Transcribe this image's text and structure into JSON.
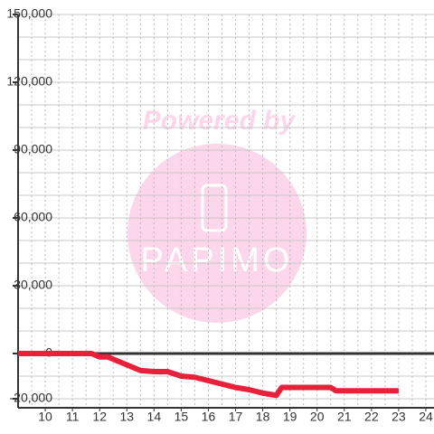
{
  "chart_data": {
    "type": "line",
    "x": [
      9,
      11.7,
      12,
      12.3,
      13,
      13.5,
      14,
      14.5,
      15,
      15.5,
      16,
      16.5,
      17,
      17.5,
      18,
      18.5,
      18.7,
      19,
      20,
      20.5,
      20.7,
      21,
      23
    ],
    "series": [
      {
        "color": "#e8203a",
        "values": [
          0,
          0,
          -1500,
          -1500,
          -5000,
          -7500,
          -8000,
          -8000,
          -10000,
          -10500,
          -12000,
          -13500,
          -15000,
          -16000,
          -17500,
          -18500,
          -15000,
          -15000,
          -15000,
          -15000,
          -16500,
          -16500,
          -16500
        ]
      }
    ],
    "xlim": [
      9,
      24.3
    ],
    "xticks": [
      10,
      11,
      12,
      13,
      14,
      15,
      16,
      17,
      18,
      19,
      20,
      21,
      22,
      23,
      24
    ],
    "xgrid": [
      9.5,
      10,
      10.5,
      11,
      11.5,
      12,
      12.5,
      13,
      13.5,
      14,
      14.5,
      15,
      15.5,
      16,
      16.5,
      17,
      17.5,
      18,
      18.5,
      19,
      19.5,
      20,
      20.5,
      21,
      21.5,
      22,
      22.5,
      23,
      23.5,
      24
    ],
    "ylim": [
      -24000,
      150000
    ],
    "yticks": [
      {
        "value": -20000,
        "label": "-20,000"
      },
      0,
      {
        "value": 30000,
        "label": "30,000"
      },
      {
        "value": 60000,
        "label": "60,000"
      },
      {
        "value": 90000,
        "label": "90,000"
      },
      {
        "value": 120000,
        "label": "120,000"
      },
      {
        "value": 150000,
        "label": "150,000"
      }
    ],
    "ygrid": [
      -20000,
      -10000,
      10000,
      20000,
      30000,
      40000,
      50000,
      60000,
      70000,
      80000,
      90000,
      100000,
      110000,
      120000,
      130000,
      140000,
      150000
    ],
    "grid": true
  },
  "watermark": {
    "line1": "Powered by",
    "line2": "PAPIMO"
  }
}
